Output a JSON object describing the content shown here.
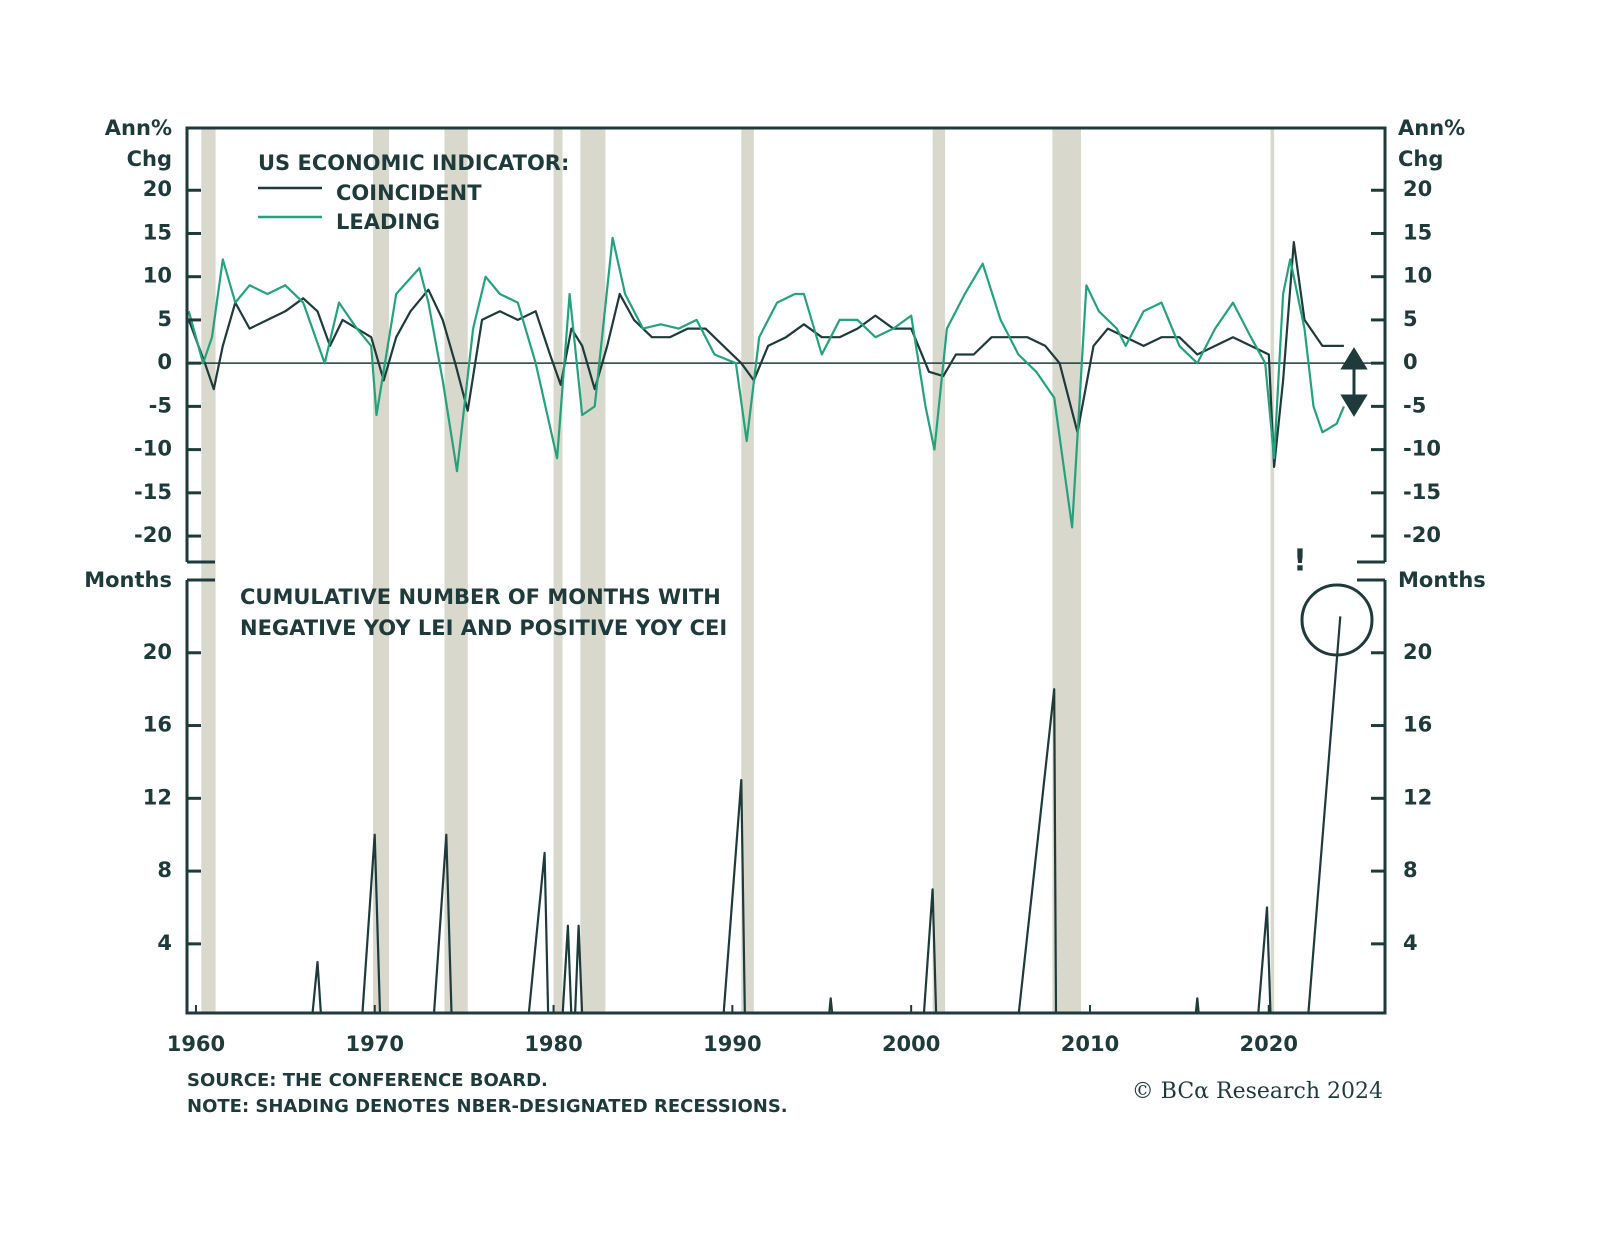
{
  "chart_data": [
    {
      "type": "line",
      "title": "US ECONOMIC INDICATOR:",
      "ylabel": [
        "Ann%",
        "Chg"
      ],
      "xlim": [
        1959.5,
        2026.5
      ],
      "ylim": [
        -23,
        27.2
      ],
      "yticks": [
        -20,
        -15,
        -10,
        -5,
        0,
        5,
        10,
        15,
        20
      ],
      "zeroline": true,
      "recessions": [
        [
          1960.3,
          1961.1
        ],
        [
          1969.9,
          1970.8
        ],
        [
          1973.9,
          1975.2
        ],
        [
          1980.0,
          1980.5
        ],
        [
          1981.5,
          1982.9
        ],
        [
          1990.5,
          1991.2
        ],
        [
          2001.2,
          2001.9
        ],
        [
          2007.9,
          2009.5
        ],
        [
          2020.1,
          2020.3
        ]
      ],
      "recession_color": "#d8d8cd",
      "series": [
        {
          "name": "COINCIDENT",
          "color": "#1e3a3a",
          "x": [
            1959.6,
            1960.5,
            1961.0,
            1961.5,
            1962.2,
            1963,
            1964,
            1965,
            1966,
            1966.8,
            1967.5,
            1968.2,
            1969,
            1969.8,
            1970.5,
            1971.2,
            1972,
            1973,
            1973.8,
            1974.5,
            1975.2,
            1976,
            1977,
            1978,
            1979,
            1979.8,
            1980.4,
            1981,
            1981.6,
            1982.3,
            1983,
            1983.7,
            1984.5,
            1985.5,
            1986.5,
            1987.5,
            1988.5,
            1989.5,
            1990.5,
            1991.2,
            1992,
            1993,
            1994,
            1995,
            1996,
            1997,
            1998,
            1999,
            2000,
            2001,
            2001.8,
            2002.5,
            2003.5,
            2004.5,
            2005.5,
            2006.5,
            2007.5,
            2008.3,
            2009.3,
            2010.2,
            2011,
            2012,
            2013,
            2014,
            2015,
            2016,
            2017,
            2018,
            2019,
            2020.0,
            2020.3,
            2020.8,
            2021.4,
            2022,
            2023,
            2024.2
          ],
          "values": [
            5,
            0,
            -3,
            2,
            7,
            4,
            5,
            6,
            7.5,
            6,
            2,
            5,
            4,
            3,
            -2,
            3,
            6,
            8.5,
            5,
            0,
            -5.5,
            5,
            6,
            5,
            6,
            1,
            -2.5,
            4,
            2,
            -3,
            2,
            8,
            5,
            3,
            3,
            4,
            4,
            2,
            0,
            -2,
            2,
            3,
            4.5,
            3,
            3,
            4,
            5.5,
            4,
            4,
            -1,
            -1.5,
            1,
            1,
            3,
            3,
            3,
            2,
            0,
            -8,
            2,
            4,
            3,
            2,
            3,
            3,
            1,
            2,
            3,
            2,
            1,
            -12,
            -2,
            14,
            5,
            2,
            2
          ]
        },
        {
          "name": "LEADING",
          "color": "#24a27b",
          "x": [
            1959.6,
            1960.4,
            1960.9,
            1961.5,
            1962.2,
            1963,
            1964,
            1965,
            1966,
            1967.2,
            1968,
            1969,
            1969.8,
            1970.1,
            1971.2,
            1972.5,
            1973,
            1973.8,
            1974.6,
            1975.5,
            1976.2,
            1977,
            1978,
            1979,
            1980.2,
            1980.9,
            1981.6,
            1982.3,
            1983.3,
            1984,
            1985,
            1986,
            1987,
            1988,
            1989,
            1990.2,
            1990.8,
            1991.5,
            1992.5,
            1993.5,
            1994,
            1995,
            1996,
            1997,
            1998,
            1999,
            2000,
            2000.8,
            2001.3,
            2002,
            2003,
            2004,
            2005,
            2006,
            2007,
            2008,
            2009,
            2009.8,
            2010.5,
            2011.5,
            2012,
            2013,
            2014,
            2015,
            2016,
            2017,
            2018,
            2019,
            2019.8,
            2020.3,
            2020.8,
            2021.2,
            2022,
            2022.5,
            2023,
            2023.8,
            2024.2
          ],
          "values": [
            6,
            0,
            3,
            12,
            7,
            9,
            8,
            9,
            7,
            0,
            7,
            4,
            2,
            -6,
            8,
            11,
            7,
            -2,
            -12.5,
            4,
            10,
            8,
            7,
            0,
            -11,
            8,
            -6,
            -5,
            14.5,
            8,
            4,
            4.5,
            4,
            5,
            1,
            0,
            -9,
            3,
            7,
            8,
            8,
            1,
            5,
            5,
            3,
            4,
            5.5,
            -5,
            -10,
            4,
            8,
            11.5,
            5,
            1,
            -1,
            -4,
            -19,
            9,
            6,
            4,
            2,
            6,
            7,
            2,
            0,
            4,
            7,
            3,
            0,
            -11,
            8,
            12,
            4,
            -5,
            -8,
            -7,
            -5
          ]
        }
      ]
    },
    {
      "type": "line",
      "title": [
        "CUMULATIVE NUMBER OF MONTHS WITH",
        "NEGATIVE YOY LEI AND POSITIVE YOY CEI"
      ],
      "ylabel": "Months",
      "annotation": "!",
      "xlim": [
        1959.5,
        2026.5
      ],
      "ylim": [
        0.2,
        24
      ],
      "xticks": [
        1960,
        1970,
        1980,
        1990,
        2000,
        2010,
        2020
      ],
      "yticks": [
        4,
        8,
        12,
        16,
        20
      ],
      "color": "#1e3a3a",
      "x": [
        1966.5,
        1966.8,
        1967,
        1969.3,
        1970,
        1970.3,
        1973.3,
        1974,
        1974.3,
        1978.6,
        1979.5,
        1979.7,
        1980.5,
        1980.8,
        1981,
        1981.2,
        1981.4,
        1981.6,
        1989.5,
        1990.5,
        1990.7,
        1995.4,
        1995.5,
        1995.6,
        2000.7,
        2001.2,
        2001.4,
        2006,
        2008,
        2008.1,
        2015.9,
        2016,
        2016.1,
        2019.4,
        2019.9,
        2020.1,
        2022.2,
        2024.0
      ],
      "values": [
        0,
        3,
        0,
        0,
        10,
        0,
        0,
        10,
        0,
        0,
        9,
        0,
        0,
        5,
        0,
        0,
        5,
        0,
        0,
        13,
        0,
        0,
        1,
        0,
        0,
        7,
        0,
        0,
        18,
        0,
        0,
        1,
        0,
        0,
        6,
        0,
        0,
        22
      ]
    }
  ],
  "footer": {
    "source": "SOURCE: THE CONFERENCE BOARD.",
    "note": "NOTE: SHADING DENOTES NBER-DESIGNATED RECESSIONS.",
    "credit": "© BCα Research 2024"
  }
}
